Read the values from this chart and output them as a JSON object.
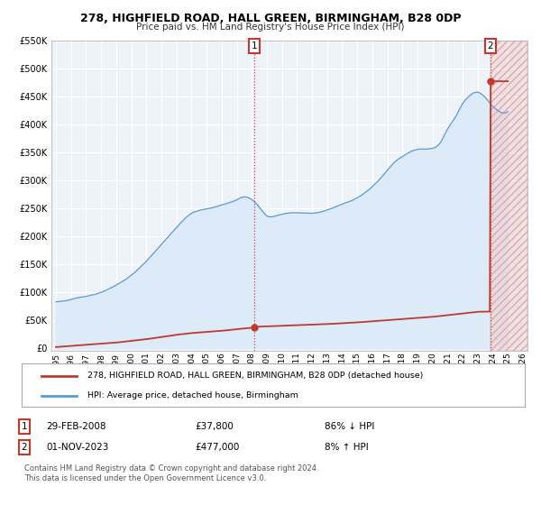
{
  "title": "278, HIGHFIELD ROAD, HALL GREEN, BIRMINGHAM, B28 0DP",
  "subtitle": "Price paid vs. HM Land Registry's House Price Index (HPI)",
  "xlim": [
    1994.7,
    2026.3
  ],
  "ylim": [
    -5000,
    550000
  ],
  "yticks": [
    0,
    50000,
    100000,
    150000,
    200000,
    250000,
    300000,
    350000,
    400000,
    450000,
    500000,
    550000
  ],
  "ytick_labels": [
    "£0",
    "£50K",
    "£100K",
    "£150K",
    "£200K",
    "£250K",
    "£300K",
    "£350K",
    "£400K",
    "£450K",
    "£500K",
    "£550K"
  ],
  "xticks": [
    1995,
    1996,
    1997,
    1998,
    1999,
    2000,
    2001,
    2002,
    2003,
    2004,
    2005,
    2006,
    2007,
    2008,
    2009,
    2010,
    2011,
    2012,
    2013,
    2014,
    2015,
    2016,
    2017,
    2018,
    2019,
    2020,
    2021,
    2022,
    2023,
    2024,
    2025,
    2026
  ],
  "hpi_color": "#5b9bd5",
  "hpi_fill_color": "#ddeaf7",
  "price_color": "#c0392b",
  "background_color": "#eef2f9",
  "grid_color": "#ffffff",
  "transaction1_x": 2008.167,
  "transaction1_y": 37800,
  "transaction2_x": 2023.833,
  "transaction2_y": 477000,
  "legend_label1": "278, HIGHFIELD ROAD, HALL GREEN, BIRMINGHAM, B28 0DP (detached house)",
  "legend_label2": "HPI: Average price, detached house, Birmingham",
  "t1_date": "29-FEB-2008",
  "t1_price": "£37,800",
  "t1_hpi": "86% ↓ HPI",
  "t2_date": "01-NOV-2023",
  "t2_price": "£477,000",
  "t2_hpi": "8% ↑ HPI",
  "footer1": "Contains HM Land Registry data © Crown copyright and database right 2024.",
  "footer2": "This data is licensed under the Open Government Licence v3.0."
}
